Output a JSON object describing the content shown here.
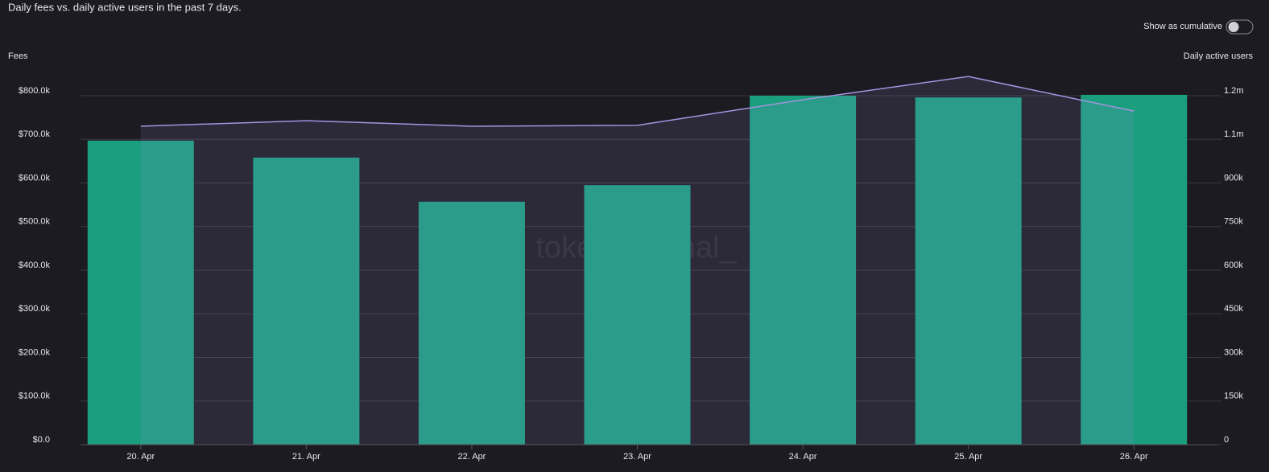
{
  "chart_data": {
    "type": "bar-line",
    "title": "Daily fees vs. daily active users in the past 7 days.",
    "toggle_label": "Show as cumulative",
    "watermark": "tokenterminal_",
    "categories": [
      "20. Apr",
      "21. Apr",
      "22. Apr",
      "23. Apr",
      "24. Apr",
      "25. Apr",
      "26. Apr"
    ],
    "series": [
      {
        "name": "Fees",
        "type": "bar",
        "color": "#1a9e7e",
        "values": [
          697000,
          658000,
          557000,
          595000,
          800000,
          796000,
          802000
        ]
      },
      {
        "name": "Daily active users",
        "type": "line",
        "axis": "y2",
        "color": "#a594e0",
        "values": [
          1095000,
          1114000,
          1095000,
          1098000,
          1186000,
          1266000,
          1147000
        ]
      }
    ],
    "ylim": [
      0,
      800000
    ],
    "yticks": [
      {
        "value": 0,
        "label": "$0.0"
      },
      {
        "value": 100000,
        "label": "$100.0k"
      },
      {
        "value": 200000,
        "label": "$200.0k"
      },
      {
        "value": 300000,
        "label": "$300.0k"
      },
      {
        "value": 400000,
        "label": "$400.0k"
      },
      {
        "value": 500000,
        "label": "$500.0k"
      },
      {
        "value": 600000,
        "label": "$600.0k"
      },
      {
        "value": 700000,
        "label": "$700.0k"
      },
      {
        "value": 800000,
        "label": "$800.0k"
      }
    ],
    "y2lim": [
      0,
      1200000
    ],
    "y2ticks": [
      0,
      {
        "value": 150000,
        "label": "150k"
      },
      {
        "value": 300000,
        "label": "300k"
      },
      {
        "value": 450000,
        "label": "450k"
      },
      {
        "value": 600000,
        "label": "600k"
      },
      {
        "value": 750000,
        "label": "750k"
      },
      {
        "value": 900000,
        "label": "900k"
      },
      {
        "value": 1050000,
        "label": "1.1m"
      },
      {
        "value": 1200000,
        "label": "1.2m"
      }
    ],
    "grid": true
  }
}
